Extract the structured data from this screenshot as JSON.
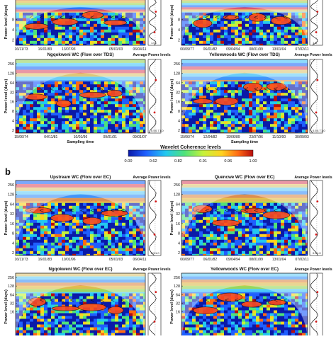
{
  "figure": {
    "panel_b_letter": "b",
    "panels_a": [
      {
        "title": "",
        "ylabel": "Power level (days)",
        "yticks": [
          "8",
          "4",
          "2"
        ],
        "xticks": [
          "16/11/73",
          "16/01/83",
          "13/07/93",
          "",
          "05/01/03",
          "06/04/11"
        ],
        "side_title": "",
        "side_ticks": [
          "1.0"
        ]
      },
      {
        "title": "",
        "ylabel": "Power level (days)",
        "yticks": [
          "8",
          "4",
          "2"
        ],
        "xticks": [
          "06/09/77",
          "06/01/82",
          "09/04/94",
          "08/01/99",
          "13/01/04",
          "07/02/11"
        ],
        "side_title": "",
        "side_ticks": [
          "1.0"
        ]
      },
      {
        "title": "Ngqokweni WC (Flow over TDS)",
        "ylabel": "Power level (days)",
        "yticks": [
          "256",
          "128",
          "64",
          "32",
          "16",
          "8",
          "4",
          "2"
        ],
        "xticks": [
          "15/06/74",
          "04/11/81",
          "10/01/96",
          "09/01/01",
          "09/01/07"
        ],
        "side_title": "Average Power levels",
        "side_ticks": [
          "0.5",
          "0.7",
          "1.0"
        ]
      },
      {
        "title": "Yellowwoods WC (Flow over TDS)",
        "ylabel": "Power level (days)",
        "yticks": [
          "256",
          "128",
          "64",
          "32",
          "16",
          "8",
          "4",
          "2"
        ],
        "xticks": [
          "15/06/74",
          "12/04/82",
          "19/06/89",
          "23/07/96",
          "11/10/00",
          "30/09/03"
        ],
        "side_title": "Average Power levels",
        "side_ticks": [
          "0.5",
          "0.7",
          "1.0"
        ]
      }
    ],
    "panels_b": [
      {
        "title": "Upstream WC (Flow over EC)",
        "ylabel": "Power level (days)",
        "yticks": [
          "256",
          "128",
          "64",
          "32",
          "16",
          "8",
          "4",
          "2"
        ],
        "xticks": [
          "16/11/73",
          "16/01/83",
          "10/01/96",
          "",
          "05/01/03",
          "06/04/11"
        ],
        "side_title": "Average Power levels",
        "side_ticks": [
          "0.5",
          "1.0"
        ]
      },
      {
        "title": "Quencwe WC (Flow over EC)",
        "ylabel": "Power level (days)",
        "yticks": [
          "256",
          "128",
          "64",
          "32",
          "16",
          "8",
          "4",
          "2"
        ],
        "xticks": [
          "06/09/77",
          "06/01/82",
          "09/04/94",
          "08/01/99",
          "13/01/04",
          "07/02/11"
        ],
        "side_title": "Average Power levels",
        "side_ticks": [
          "0.5",
          "1.0"
        ]
      },
      {
        "title": "Ngqokweni WC (Flow over EC)",
        "ylabel": "Power level (days)",
        "yticks": [
          "256",
          "128",
          "64",
          "32",
          "16"
        ],
        "xticks": [],
        "side_title": "Average Power levels",
        "side_ticks": [
          "0.5"
        ]
      },
      {
        "title": "Yellowwoods WC (Flow over EC)",
        "ylabel": "Power level (days)",
        "yticks": [
          "256",
          "128",
          "64",
          "32",
          "16"
        ],
        "xticks": [],
        "side_title": "Average Power levels",
        "side_ticks": [
          "0.5"
        ]
      }
    ],
    "sampling_label": "Sampling time",
    "colorbar": {
      "label": "Wavelet Coherence levels",
      "ticks": [
        "0.00",
        "0.62",
        "0.82",
        "0.91",
        "0.96",
        "1.00"
      ],
      "colors": [
        "#0a1aa8",
        "#1f5fff",
        "#23c8f0",
        "#4fe27a",
        "#c6f23a",
        "#ffd21f",
        "#ff6a12",
        "#b80d0d"
      ]
    }
  },
  "chart_data": {
    "type": "heatmap",
    "title": "",
    "colorbar_label": "Wavelet Coherence levels",
    "colorbar_ticks": [
      0.0,
      0.62,
      0.82,
      0.91,
      0.96,
      1.0
    ],
    "period_axis_days": [
      2,
      4,
      8,
      16,
      32,
      64,
      128,
      256
    ],
    "panels": [
      {
        "group": "a",
        "name": "Ngqokweni WC (Flow over TDS)",
        "dates": [
          "15/06/74",
          "04/11/81",
          "10/01/96",
          "09/01/01",
          "09/01/07"
        ]
      },
      {
        "group": "a",
        "name": "Yellowwoods WC (Flow over TDS)",
        "dates": [
          "15/06/74",
          "12/04/82",
          "19/06/89",
          "23/07/96",
          "11/10/00",
          "30/09/03"
        ]
      },
      {
        "group": "b",
        "name": "Upstream WC (Flow over EC)",
        "dates": [
          "16/11/73",
          "16/01/83",
          "10/01/96",
          "05/01/03",
          "06/04/11"
        ]
      },
      {
        "group": "b",
        "name": "Quencwe WC (Flow over EC)",
        "dates": [
          "06/09/77",
          "06/01/82",
          "09/04/94",
          "08/01/99",
          "13/01/04",
          "07/02/11"
        ]
      },
      {
        "group": "b",
        "name": "Ngqokweni WC (Flow over EC)",
        "dates": []
      },
      {
        "group": "b",
        "name": "Yellowwoods WC (Flow over EC)",
        "dates": []
      }
    ]
  }
}
